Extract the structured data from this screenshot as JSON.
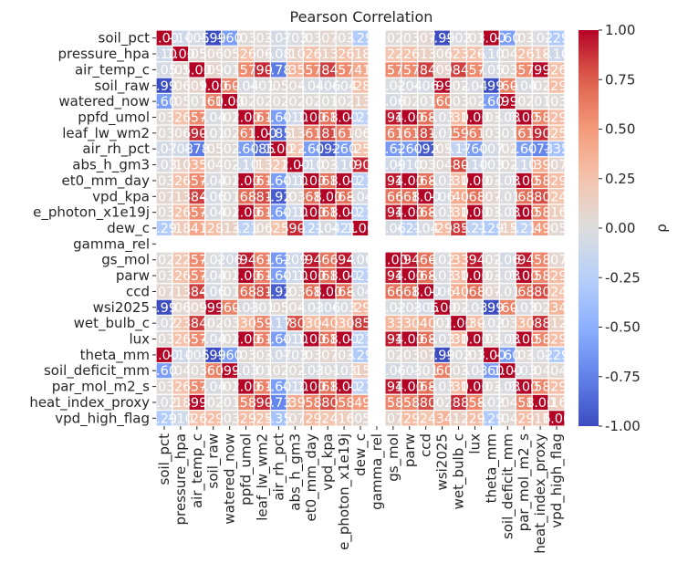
{
  "chart_data": {
    "type": "heatmap",
    "title": "Pearson Correlation",
    "colorbar_label": "ρ",
    "colormap": "coolwarm",
    "vmin": -1.0,
    "vmax": 1.0,
    "colorbar_ticks": [
      "1.00",
      "0.75",
      "0.50",
      "0.25",
      "0.00",
      "-0.25",
      "-0.50",
      "-0.75",
      "-1.00"
    ],
    "labels": [
      "soil_pct",
      "pressure_hpa",
      "air_temp_c",
      "soil_raw",
      "watered_now",
      "ppfd_umol",
      "leaf_lw_wm2",
      "air_rh_pct",
      "abs_h_gm3",
      "et0_mm_day",
      "vpd_kpa",
      "e_photon_x1e19j",
      "dew_c",
      "gamma_rel",
      "gs_mol",
      "parw",
      "ccd",
      "wsi2025",
      "wet_bulb_c",
      "lux",
      "theta_mm",
      "soil_deficit_mm",
      "par_mol_m2_s",
      "heat_index_proxy",
      "vpd_high_flag"
    ],
    "matrix": [
      [
        1.0,
        -0.1,
        -0.05,
        -0.99,
        -0.6,
        0.03,
        0.03,
        -0.07,
        -0.03,
        0.03,
        0.07,
        0.03,
        -0.29,
        null,
        0.02,
        0.03,
        0.07,
        -0.99,
        -0.02,
        0.03,
        1.0,
        -0.6,
        0.03,
        -0.02,
        -0.29
      ],
      [
        -0.1,
        1.0,
        0.05,
        0.06,
        0.05,
        0.26,
        0.06,
        -0.08,
        0.1,
        0.26,
        0.13,
        0.26,
        0.18,
        null,
        0.22,
        0.26,
        0.13,
        0.06,
        0.23,
        0.26,
        -0.1,
        0.04,
        0.26,
        0.18,
        -0.1
      ],
      [
        -0.05,
        0.05,
        1.0,
        0.09,
        0.01,
        0.57,
        0.9,
        -0.78,
        0.35,
        0.57,
        0.84,
        0.57,
        0.41,
        null,
        0.57,
        0.57,
        0.84,
        0.09,
        0.84,
        0.57,
        -0.05,
        0.03,
        0.57,
        0.99,
        0.26
      ],
      [
        -0.99,
        0.06,
        0.09,
        1.0,
        0.6,
        -0.04,
        -0.01,
        0.05,
        0.04,
        -0.04,
        -0.06,
        -0.04,
        0.28,
        null,
        -0.02,
        -0.04,
        -0.06,
        0.99,
        0.02,
        -0.04,
        -0.99,
        0.6,
        -0.04,
        0.02,
        0.29
      ],
      [
        -0.6,
        0.05,
        0.01,
        0.6,
        1.0,
        0.02,
        0.02,
        0.02,
        0.02,
        0.02,
        0.01,
        0.02,
        0.13,
        null,
        -0.06,
        0.02,
        0.01,
        0.6,
        0.03,
        0.02,
        -0.6,
        0.99,
        0.02,
        0.01,
        0.03
      ],
      [
        0.03,
        0.26,
        0.57,
        -0.04,
        0.02,
        1.0,
        0.61,
        -0.6,
        -0.1,
        1.0,
        0.68,
        1.0,
        -0.21,
        null,
        0.94,
        1.0,
        0.68,
        -0.03,
        0.3,
        1.0,
        0.03,
        -0.03,
        1.0,
        0.58,
        0.29
      ],
      [
        0.03,
        0.06,
        0.9,
        -0.01,
        0.02,
        0.61,
        1.0,
        -0.85,
        0.13,
        0.61,
        0.81,
        0.61,
        0.06,
        null,
        0.61,
        0.61,
        0.81,
        -0.01,
        0.59,
        0.61,
        0.03,
        0.01,
        0.61,
        0.9,
        0.25
      ],
      [
        -0.07,
        -0.08,
        -0.78,
        0.05,
        0.02,
        -0.6,
        -0.85,
        1.0,
        0.22,
        -0.6,
        -0.92,
        -0.6,
        0.25,
        null,
        -0.62,
        -0.6,
        -0.92,
        0.05,
        -0.17,
        -0.6,
        -0.07,
        0.02,
        -0.6,
        -0.73,
        -0.35
      ],
      [
        -0.03,
        0.1,
        0.35,
        0.04,
        0.02,
        -0.1,
        0.13,
        0.22,
        1.0,
        -0.1,
        0.03,
        -0.1,
        0.9,
        null,
        -0.09,
        -0.1,
        0.03,
        0.04,
        0.8,
        -0.1,
        -0.03,
        0.02,
        -0.1,
        0.39,
        0.07
      ],
      [
        0.03,
        0.26,
        0.57,
        -0.04,
        0.02,
        1.0,
        0.61,
        -0.6,
        -0.1,
        1.0,
        0.68,
        1.0,
        -0.21,
        null,
        0.94,
        1.0,
        0.68,
        -0.03,
        0.3,
        1.0,
        0.03,
        -0.03,
        1.0,
        0.58,
        0.29
      ],
      [
        0.07,
        0.13,
        0.84,
        -0.06,
        0.01,
        0.68,
        0.81,
        -0.92,
        0.03,
        0.68,
        1.0,
        0.68,
        -0.04,
        null,
        0.66,
        0.68,
        1.0,
        -0.06,
        0.4,
        0.68,
        0.07,
        -0.01,
        0.68,
        0.8,
        0.24
      ],
      [
        0.03,
        0.26,
        0.57,
        -0.04,
        0.02,
        1.0,
        0.61,
        -0.6,
        -0.1,
        1.0,
        0.68,
        1.0,
        -0.21,
        null,
        0.94,
        1.0,
        0.68,
        -0.03,
        0.3,
        1.0,
        0.03,
        -0.03,
        1.0,
        0.58,
        0.16
      ],
      [
        -0.29,
        0.18,
        0.41,
        0.28,
        0.13,
        -0.21,
        0.06,
        0.25,
        0.9,
        -0.21,
        -0.04,
        -0.21,
        1.0,
        null,
        -0.06,
        -0.21,
        -0.04,
        0.29,
        0.85,
        -0.21,
        -0.29,
        0.15,
        -0.21,
        0.49,
        0.05
      ],
      [
        null,
        null,
        null,
        null,
        null,
        null,
        null,
        null,
        null,
        null,
        null,
        null,
        null,
        null,
        null,
        null,
        null,
        null,
        null,
        null,
        null,
        null,
        null,
        null,
        null
      ],
      [
        0.02,
        0.22,
        0.57,
        -0.02,
        -0.06,
        0.94,
        0.61,
        -0.62,
        -0.09,
        0.94,
        0.66,
        0.94,
        -0.06,
        null,
        1.0,
        0.94,
        0.66,
        -0.02,
        0.33,
        0.94,
        0.02,
        -0.06,
        0.94,
        0.58,
        0.07
      ],
      [
        0.03,
        0.26,
        0.57,
        -0.04,
        0.02,
        1.0,
        0.61,
        -0.6,
        -0.1,
        1.0,
        0.68,
        1.0,
        -0.21,
        null,
        0.94,
        1.0,
        0.68,
        -0.03,
        0.3,
        1.0,
        0.03,
        -0.03,
        1.0,
        0.58,
        0.29
      ],
      [
        0.07,
        0.13,
        0.84,
        -0.06,
        0.01,
        0.68,
        0.81,
        -0.92,
        0.03,
        0.68,
        1.0,
        0.68,
        -0.04,
        null,
        0.66,
        0.68,
        1.0,
        -0.06,
        0.4,
        0.68,
        0.07,
        -0.01,
        0.68,
        0.8,
        0.24
      ],
      [
        -0.99,
        0.06,
        0.09,
        0.99,
        0.6,
        -0.03,
        -0.01,
        0.05,
        0.04,
        -0.03,
        -0.06,
        -0.03,
        0.29,
        null,
        -0.02,
        -0.03,
        -0.06,
        1.0,
        0.02,
        -0.03,
        -0.99,
        0.6,
        -0.03,
        0.02,
        0.34
      ],
      [
        -0.02,
        0.23,
        0.84,
        0.02,
        0.03,
        0.3,
        0.59,
        -0.17,
        0.8,
        0.3,
        0.4,
        0.3,
        0.85,
        null,
        0.33,
        0.3,
        0.4,
        0.02,
        1.0,
        0.3,
        -0.02,
        0.03,
        0.3,
        0.88,
        0.12
      ],
      [
        0.03,
        0.26,
        0.57,
        -0.04,
        0.02,
        1.0,
        0.61,
        -0.6,
        -0.1,
        1.0,
        0.68,
        1.0,
        -0.21,
        null,
        0.94,
        1.0,
        0.68,
        -0.03,
        0.3,
        1.0,
        0.03,
        -0.03,
        1.0,
        0.58,
        0.29
      ],
      [
        1.0,
        -0.1,
        -0.05,
        -0.99,
        -0.6,
        0.03,
        0.03,
        -0.07,
        -0.03,
        0.03,
        0.07,
        0.03,
        -0.29,
        null,
        0.02,
        0.03,
        0.07,
        -0.99,
        -0.02,
        0.03,
        1.0,
        -0.6,
        0.03,
        -0.02,
        -0.29
      ],
      [
        -0.6,
        0.04,
        0.03,
        0.6,
        0.99,
        -0.03,
        0.01,
        0.02,
        0.02,
        -0.03,
        -0.01,
        -0.03,
        0.15,
        null,
        -0.06,
        -0.03,
        -0.01,
        0.6,
        0.03,
        -0.03,
        -0.6,
        1.0,
        -0.03,
        0.04,
        0.04
      ],
      [
        0.03,
        0.26,
        0.57,
        -0.04,
        0.02,
        1.0,
        0.61,
        -0.6,
        -0.1,
        1.0,
        0.68,
        1.0,
        -0.21,
        null,
        0.94,
        1.0,
        0.68,
        -0.03,
        0.3,
        1.0,
        0.03,
        -0.03,
        1.0,
        0.58,
        0.29
      ],
      [
        -0.02,
        0.18,
        0.99,
        0.02,
        0.01,
        0.58,
        0.9,
        -0.73,
        0.39,
        0.58,
        0.8,
        0.58,
        0.49,
        null,
        0.58,
        0.58,
        0.8,
        0.02,
        0.88,
        0.58,
        -0.02,
        0.04,
        0.58,
        1.0,
        0.16
      ],
      [
        -0.29,
        -0.1,
        0.26,
        0.29,
        0.03,
        0.29,
        0.25,
        -0.35,
        0.07,
        0.29,
        0.24,
        0.16,
        0.05,
        null,
        0.07,
        0.29,
        0.24,
        0.34,
        0.12,
        0.29,
        -0.29,
        0.04,
        0.29,
        0.16,
        1.0
      ]
    ]
  }
}
